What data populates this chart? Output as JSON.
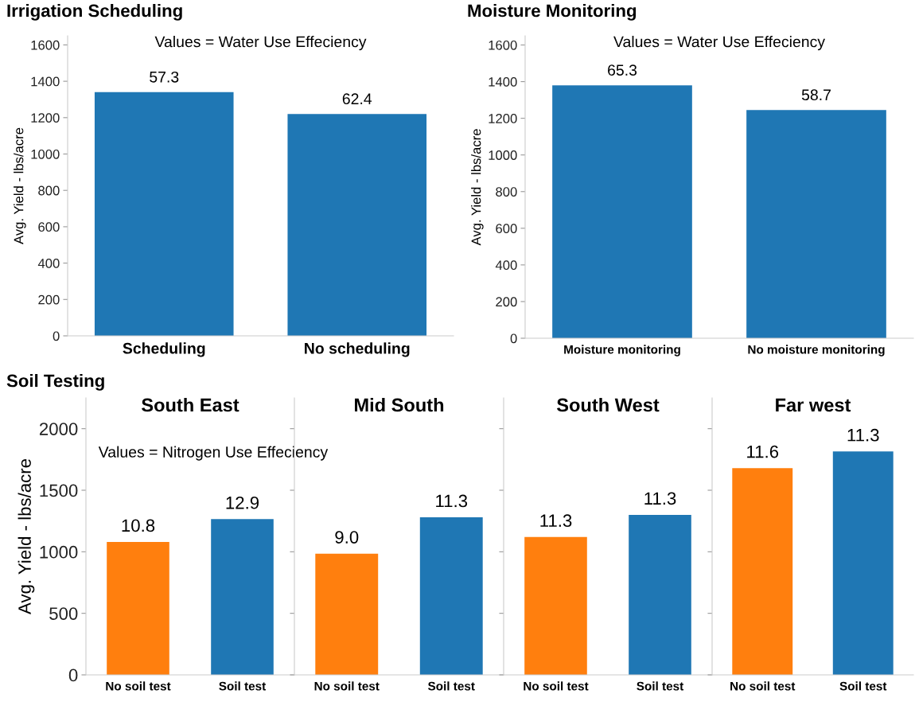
{
  "chart_data": [
    {
      "type": "bar",
      "title": "Irrigation Scheduling",
      "ylabel": "Avg. Yield - lbs/acre",
      "categories": [
        "Scheduling",
        "No scheduling"
      ],
      "values": [
        1340,
        1220
      ],
      "color": "#1f77b4",
      "annotations": [
        "Values = Water Use Effeciency",
        {
          "text": "57.3",
          "x": "Scheduling",
          "y": 1340
        },
        {
          "text": "62.4",
          "x": "No scheduling",
          "y": 1220
        }
      ],
      "ylim": [
        0,
        1650
      ],
      "yticks": [
        0,
        200,
        400,
        600,
        800,
        1000,
        1200,
        1400,
        1600
      ],
      "grid": false
    },
    {
      "type": "bar",
      "title": "Moisture Monitoring",
      "ylabel": "Avg. Yield - lbs/acre",
      "categories": [
        "Moisture monitoring",
        "No moisture monitoring"
      ],
      "values": [
        1380,
        1245
      ],
      "color": "#1f77b4",
      "annotations": [
        "Values = Water Use Effeciency",
        {
          "text": "65.3",
          "x": "Moisture monitoring",
          "y": 1380
        },
        {
          "text": "58.7",
          "x": "No moisture monitoring",
          "y": 1245
        }
      ],
      "ylim": [
        0,
        1650
      ],
      "yticks": [
        0,
        200,
        400,
        600,
        800,
        1000,
        1200,
        1400,
        1600
      ],
      "grid": false
    },
    {
      "type": "bar",
      "title": "Soil Testing",
      "subtitle": "South East",
      "ylabel": "Avg. Yield - lbs/acre",
      "categories": [
        "No soil test",
        "Soil test"
      ],
      "values": [
        1080,
        1265
      ],
      "colors": [
        "#ff7f0e",
        "#1f77b4"
      ],
      "annotations": [
        "Values = Nitrogen Use Effeciency",
        {
          "text": "10.8",
          "x": "No soil test",
          "y": 1080
        },
        {
          "text": "12.9",
          "x": "Soil test",
          "y": 1265
        }
      ],
      "ylim": [
        0,
        2250
      ],
      "yticks": [
        0,
        500,
        1000,
        1500,
        2000
      ],
      "grid": false
    },
    {
      "type": "bar",
      "subtitle": "Mid South",
      "categories": [
        "No soil test",
        "Soil test"
      ],
      "values": [
        985,
        1280
      ],
      "colors": [
        "#ff7f0e",
        "#1f77b4"
      ],
      "annotations": [
        {
          "text": "9.0",
          "x": "No soil test",
          "y": 985
        },
        {
          "text": "11.3",
          "x": "Soil test",
          "y": 1280
        }
      ],
      "ylim": [
        0,
        2250
      ],
      "yticks": [
        0,
        500,
        1000,
        1500,
        2000
      ],
      "tick_labels": "x",
      "grid": false
    },
    {
      "type": "bar",
      "subtitle": "South West",
      "categories": [
        "No soil test",
        "Soil test"
      ],
      "values": [
        1120,
        1300
      ],
      "colors": [
        "#ff7f0e",
        "#1f77b4"
      ],
      "annotations": [
        {
          "text": "11.3",
          "x": "No soil test",
          "y": 1120
        },
        {
          "text": "11.3",
          "x": "Soil test",
          "y": 1300
        }
      ],
      "ylim": [
        0,
        2250
      ],
      "yticks": [
        0,
        500,
        1000,
        1500,
        2000
      ],
      "tick_labels": "x",
      "grid": false
    },
    {
      "type": "bar",
      "subtitle": "Far west",
      "categories": [
        "No soil test",
        "Soil test"
      ],
      "values": [
        1680,
        1815
      ],
      "colors": [
        "#ff7f0e",
        "#1f77b4"
      ],
      "annotations": [
        {
          "text": "11.6",
          "x": "No soil test",
          "y": 1680
        },
        {
          "text": "11.3",
          "x": "Soil test",
          "y": 1815
        }
      ],
      "ylim": [
        0,
        2250
      ],
      "yticks": [
        0,
        500,
        1000,
        1500,
        2000
      ],
      "tick_labels": "x",
      "grid": false
    }
  ]
}
